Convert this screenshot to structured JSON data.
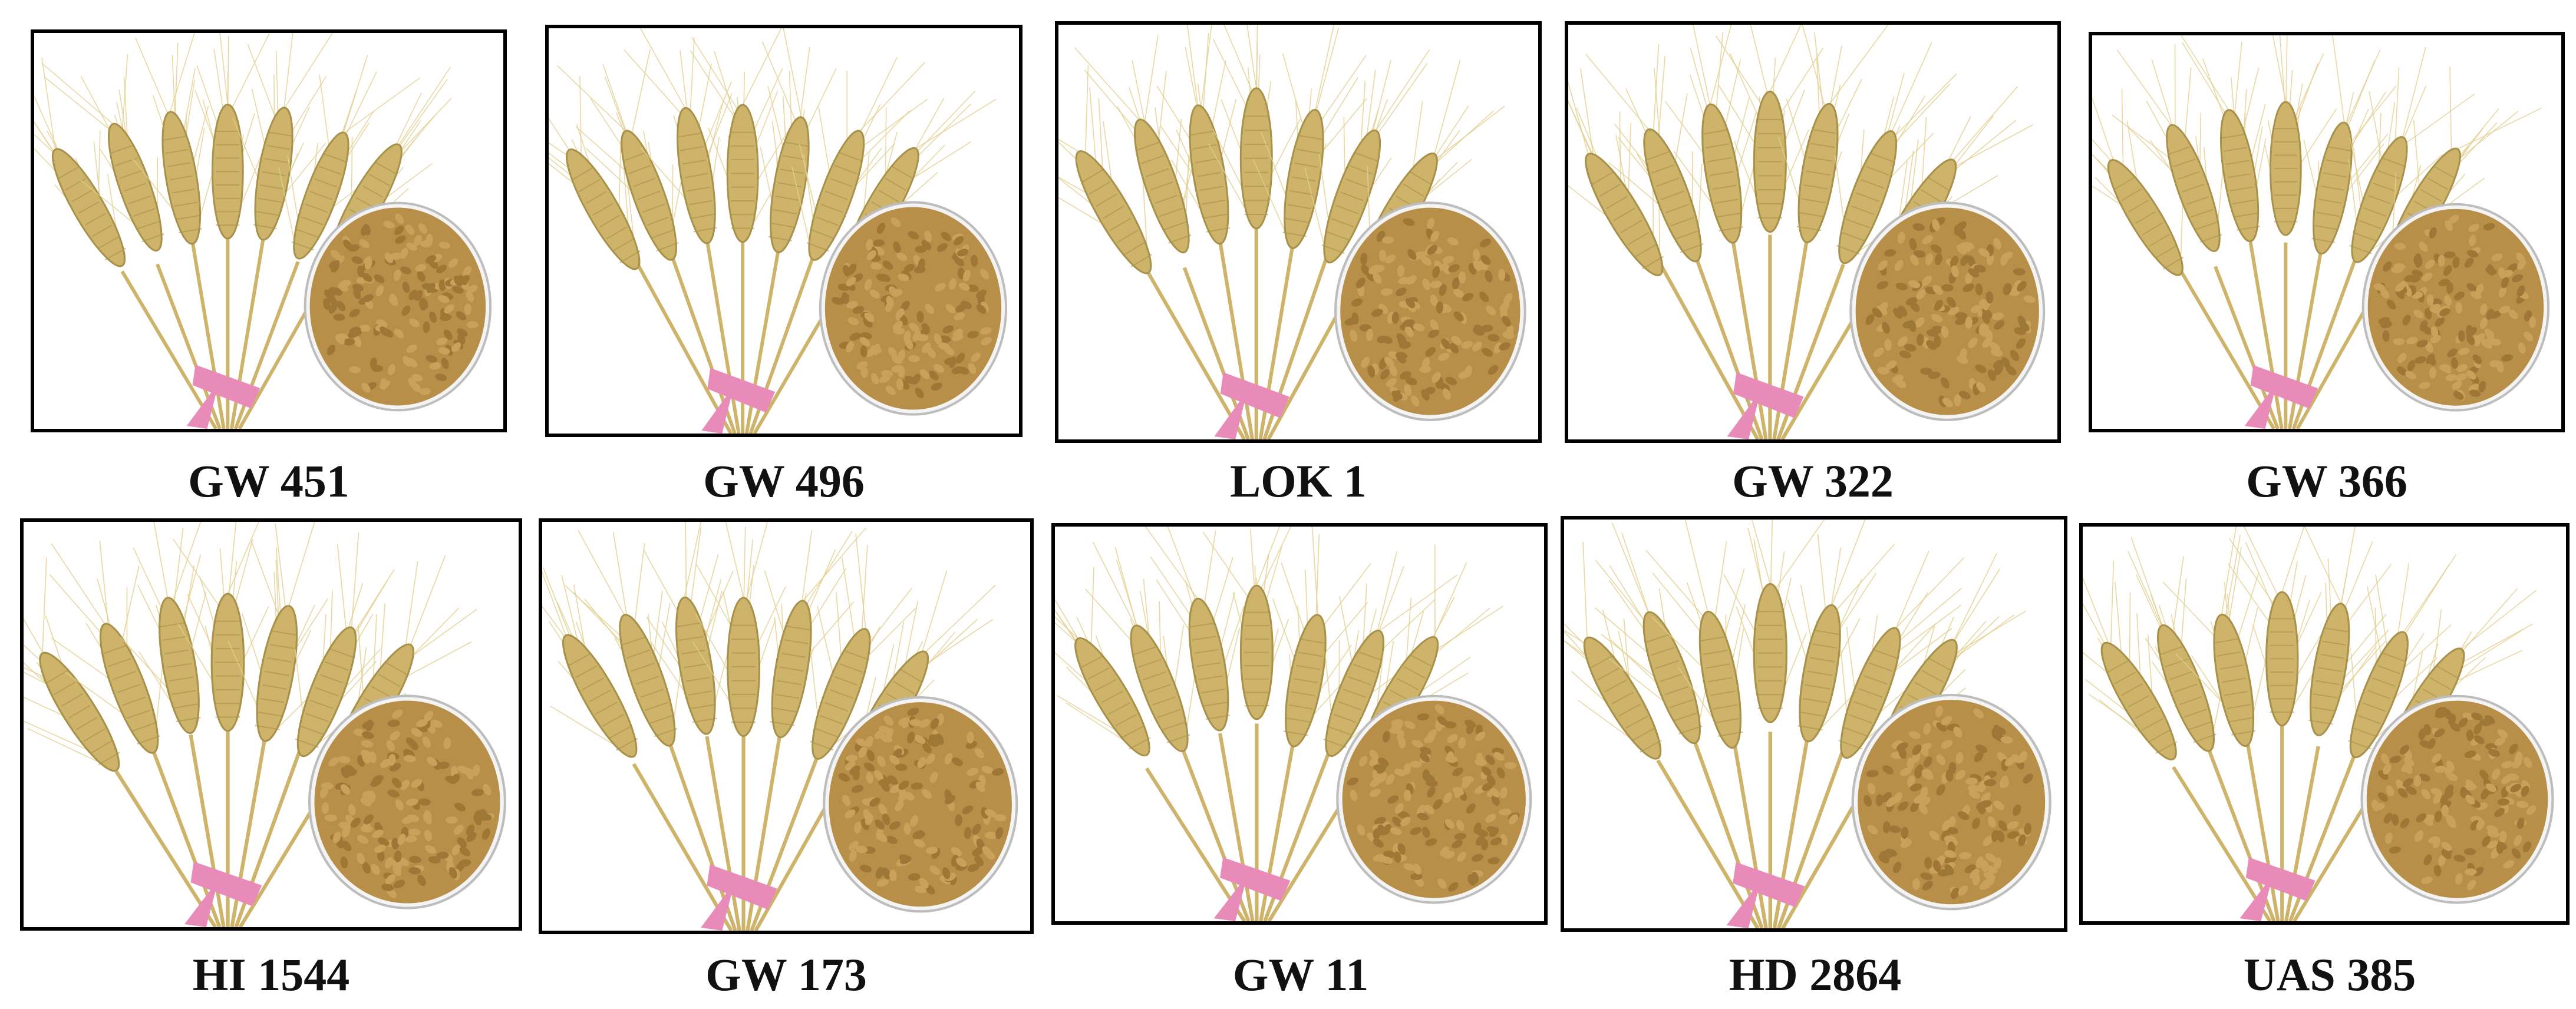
{
  "colors": {
    "background": "#ffffff",
    "frame": "#000000",
    "text": "#111111",
    "wheat_light": "#e3cf8f",
    "wheat_mid": "#cdb46a",
    "wheat_dark": "#a8914a",
    "ribbon": "#e98bb8",
    "grain": "#b88f48",
    "dish_rim": "#bdbdbd"
  },
  "icon": "wheat-spikes-with-grain-dish",
  "varieties": [
    {
      "label": "GW 451"
    },
    {
      "label": "GW 496"
    },
    {
      "label": "LOK 1"
    },
    {
      "label": "GW 322"
    },
    {
      "label": "GW 366"
    },
    {
      "label": "HI 1544"
    },
    {
      "label": "GW 173"
    },
    {
      "label": "GW 11"
    },
    {
      "label": "HD 2864"
    },
    {
      "label": "UAS 385"
    }
  ]
}
